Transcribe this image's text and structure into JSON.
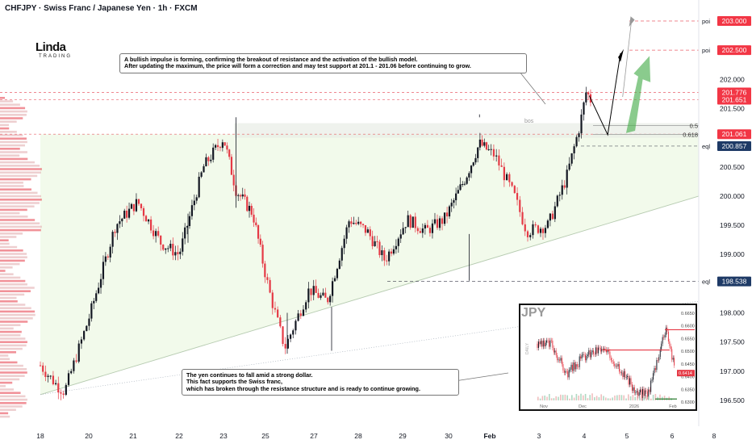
{
  "header": {
    "title": "CHFJPY · Swiss Franc / Japanese Yen · 1h · FXCM"
  },
  "logo": {
    "line1": "Linda",
    "line2": "TRADING"
  },
  "notes": {
    "top": "A bullish impulse is forming, confirming the breakout of resistance and the activation of the bullish model.\nAfter updating the maximum, the price will form a correction and may test support at 201.1 - 201.06 before continuing to grow.",
    "bottom": "The yen continues to fall amid a strong dollar.\nThis fact supports the Swiss franc,\nwhich has broken through the resistance structure and is ready to continue growing."
  },
  "colors": {
    "bull": "#131722",
    "bear": "#e53945",
    "red_label": "#f23645",
    "blue_label": "#2962ff",
    "navy_label": "#1e3a66",
    "green_arrow": "#4caf50",
    "zone_fill": "#eef8e4"
  },
  "chart_data": {
    "type": "candlestick",
    "symbol": "CHFJPY",
    "timeframe": "1h",
    "y_range": [
      196.1,
      203.15
    ],
    "y_ticks": [
      "203.000",
      "202.500",
      "202.000",
      "201.500",
      "201.000",
      "200.500",
      "200.000",
      "199.500",
      "199.000",
      "198.500",
      "198.000",
      "197.500",
      "197.000",
      "196.500"
    ],
    "x_ticks": [
      "18",
      "20",
      "21",
      "22",
      "23",
      "25",
      "27",
      "28",
      "29",
      "30",
      "Feb",
      "3",
      "4",
      "5",
      "6",
      "8"
    ],
    "levels": [
      {
        "value": 203.0,
        "tag": "poi",
        "label": "203.000",
        "style": "red"
      },
      {
        "value": 202.5,
        "tag": "poi",
        "label": "202.500",
        "style": "red"
      },
      {
        "value": 201.776,
        "tag": "",
        "label": "201.776",
        "style": "red"
      },
      {
        "value": 201.651,
        "tag": "",
        "label": "201.651",
        "style": "red"
      },
      {
        "value": 201.061,
        "tag": "",
        "label": "201.061",
        "style": "red"
      },
      {
        "value": 200.857,
        "tag": "eql",
        "label": "200.857",
        "style": "navy"
      },
      {
        "value": 198.538,
        "tag": "eql",
        "label": "198.538",
        "style": "navy"
      }
    ],
    "fib": [
      {
        "label": "0.5",
        "value": 201.17
      },
      {
        "label": "0.618",
        "value": 201.06
      }
    ],
    "bos_label": "bos",
    "candles": []
  },
  "inset": {
    "title": "JPY",
    "side_label": "DAILY",
    "y_ticks": [
      "0.6650",
      "0.6600",
      "0.6550",
      "0.6500",
      "0.6450",
      "0.6400",
      "0.6350",
      "0.6300"
    ],
    "price_tag": "0.6414",
    "x_ticks": [
      "Nov",
      "Dec",
      "2026",
      "Feb"
    ]
  }
}
